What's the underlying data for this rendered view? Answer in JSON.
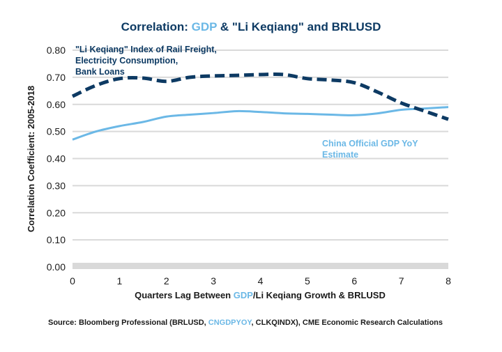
{
  "chart_data": {
    "type": "line",
    "title_parts": [
      "Correlation: ",
      "GDP",
      " & \"Li Keqiang\" and BRLUSD"
    ],
    "xlabel_parts": [
      "Quarters Lag Between ",
      "GDP",
      "/Li Keqiang Growth & BRLUSD"
    ],
    "ylabel": "Correlation Coefficient: 2005-2018",
    "source_parts": [
      "Source: Bloomberg Professional (BRLUSD, ",
      "CNGDPYOY",
      ", CLKQINDX), CME Economic Research Calculations"
    ],
    "xlim": [
      0,
      8
    ],
    "ylim": [
      0,
      0.8
    ],
    "xticks": [
      "0",
      "1",
      "2",
      "3",
      "4",
      "5",
      "6",
      "7",
      "8"
    ],
    "yticks": [
      "0.00",
      "0.10",
      "0.20",
      "0.30",
      "0.40",
      "0.50",
      "0.60",
      "0.70",
      "0.80"
    ],
    "grid": true,
    "x": [
      0,
      0.5,
      1,
      1.5,
      2,
      2.5,
      3,
      3.5,
      4,
      4.5,
      5,
      5.5,
      6,
      6.5,
      7,
      7.5,
      8
    ],
    "series": [
      {
        "name": "\"Li Keqiang\" Index of Rail Freight, Electricity Consumption, Bank Loans",
        "label_lines": [
          "\"Li Keqiang\" Index of Rail Freight,",
          "Electricity Consumption,",
          "Bank Loans"
        ],
        "color": "#0d3a63",
        "style": "dashed",
        "values": [
          0.63,
          0.67,
          0.695,
          0.697,
          0.685,
          0.7,
          0.705,
          0.707,
          0.71,
          0.71,
          0.695,
          0.69,
          0.68,
          0.645,
          0.605,
          0.575,
          0.545
        ]
      },
      {
        "name": "China Official GDP YoY Estimate",
        "label_lines": [
          "China Official GDP YoY",
          "Estimate"
        ],
        "color": "#6bb8e6",
        "style": "solid",
        "values": [
          0.47,
          0.5,
          0.52,
          0.535,
          0.555,
          0.562,
          0.568,
          0.575,
          0.572,
          0.567,
          0.565,
          0.562,
          0.56,
          0.567,
          0.58,
          0.585,
          0.59
        ]
      }
    ]
  },
  "colors": {
    "dark": "#0d3a63",
    "light": "#6bb8e6",
    "grid": "#d9d9d9",
    "text": "#1a1a1a"
  }
}
